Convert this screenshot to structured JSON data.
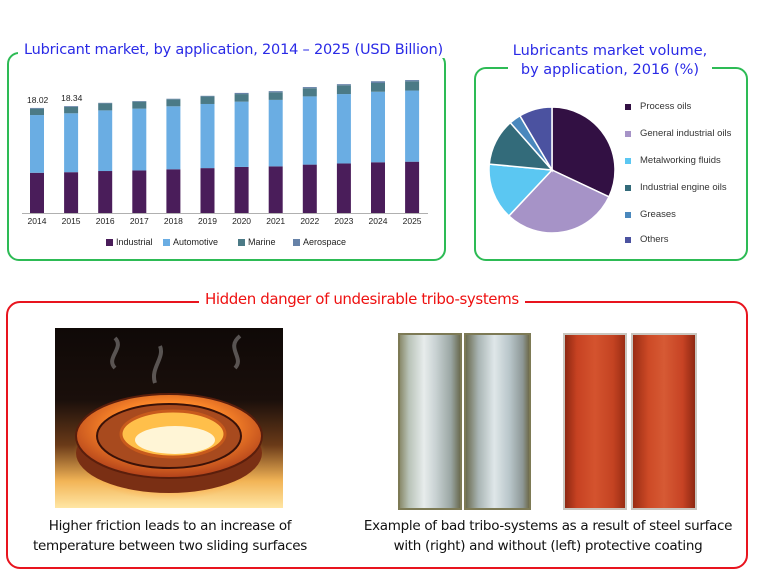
{
  "top_left": {
    "title": "Lubricant market, by application, 2014 – 2025 (USD Billion)"
  },
  "top_right": {
    "title_line1": "Lubricants market volume,",
    "title_line2": "by application, 2016 (%)"
  },
  "bottom": {
    "title": "Hidden danger of undesirable tribo-systems",
    "caption_left_line1": "Higher friction leads to an increase of",
    "caption_left_line2": "temperature between two sliding surfaces",
    "caption_right_line1": "Example of bad tribo-systems as a result of steel surface",
    "caption_right_line2": "with (right) and without (left) protective coating",
    "image_left": "glowing-hot-bearing-photo",
    "image_right_a": "uncoated-steel-bearing-shells-photo",
    "image_right_b": "coated-red-bearing-shells-photo"
  },
  "colors": {
    "green_border": "#2dbb55",
    "red_border": "#e8141e",
    "title_blue": "#2a2ae6",
    "industrial": "#4a1d5a",
    "automotive": "#6aade3",
    "marine": "#4b7a86",
    "aerospace": "#6682a8",
    "process_oils": "#321043",
    "general_industrial_oils": "#a693c7",
    "metalworking_fluids": "#5bc7f2",
    "industrial_engine_oils": "#336b7a",
    "greases": "#4a88bd",
    "others": "#4b52a0"
  },
  "chart_data": [
    {
      "type": "bar",
      "stacked": true,
      "title": "Lubricant market, by application, 2014 – 2025 (USD Billion)",
      "xlabel": "",
      "ylabel": "USD Billion",
      "categories": [
        "2014",
        "2015",
        "2016",
        "2017",
        "2018",
        "2019",
        "2020",
        "2021",
        "2022",
        "2023",
        "2024",
        "2025"
      ],
      "series": [
        {
          "name": "Industrial",
          "values": [
            6.9,
            7.0,
            7.2,
            7.3,
            7.5,
            7.7,
            7.9,
            8.0,
            8.3,
            8.5,
            8.7,
            8.8
          ]
        },
        {
          "name": "Automotive",
          "values": [
            9.9,
            10.1,
            10.4,
            10.6,
            10.8,
            11.0,
            11.2,
            11.4,
            11.7,
            11.9,
            12.1,
            12.2
          ]
        },
        {
          "name": "Marine",
          "values": [
            1.1,
            1.1,
            1.2,
            1.2,
            1.2,
            1.3,
            1.3,
            1.3,
            1.4,
            1.5,
            1.5,
            1.6
          ]
        },
        {
          "name": "Aerospace",
          "values": [
            0.12,
            0.14,
            0.1,
            0.1,
            0.1,
            0.1,
            0.2,
            0.2,
            0.2,
            0.2,
            0.3,
            0.2
          ]
        }
      ],
      "totals": [
        18.02,
        18.34,
        18.9,
        19.2,
        19.6,
        20.1,
        20.6,
        20.9,
        21.6,
        22.1,
        22.6,
        22.8
      ],
      "data_labels": {
        "2014": "18.02",
        "2015": "18.34"
      },
      "legend": [
        "Industrial",
        "Automotive",
        "Marine",
        "Aerospace"
      ],
      "legend_position": "bottom",
      "grid": false,
      "ylim": [
        0,
        24
      ]
    },
    {
      "type": "pie",
      "title": "Lubricants market volume, by application, 2016 (%)",
      "labels": [
        "Process oils",
        "General industrial oils",
        "Metalworking fluids",
        "Industrial engine oils",
        "Greases",
        "Others"
      ],
      "values": [
        32,
        30,
        14.5,
        12,
        3,
        8.5
      ],
      "legend_position": "right"
    }
  ]
}
